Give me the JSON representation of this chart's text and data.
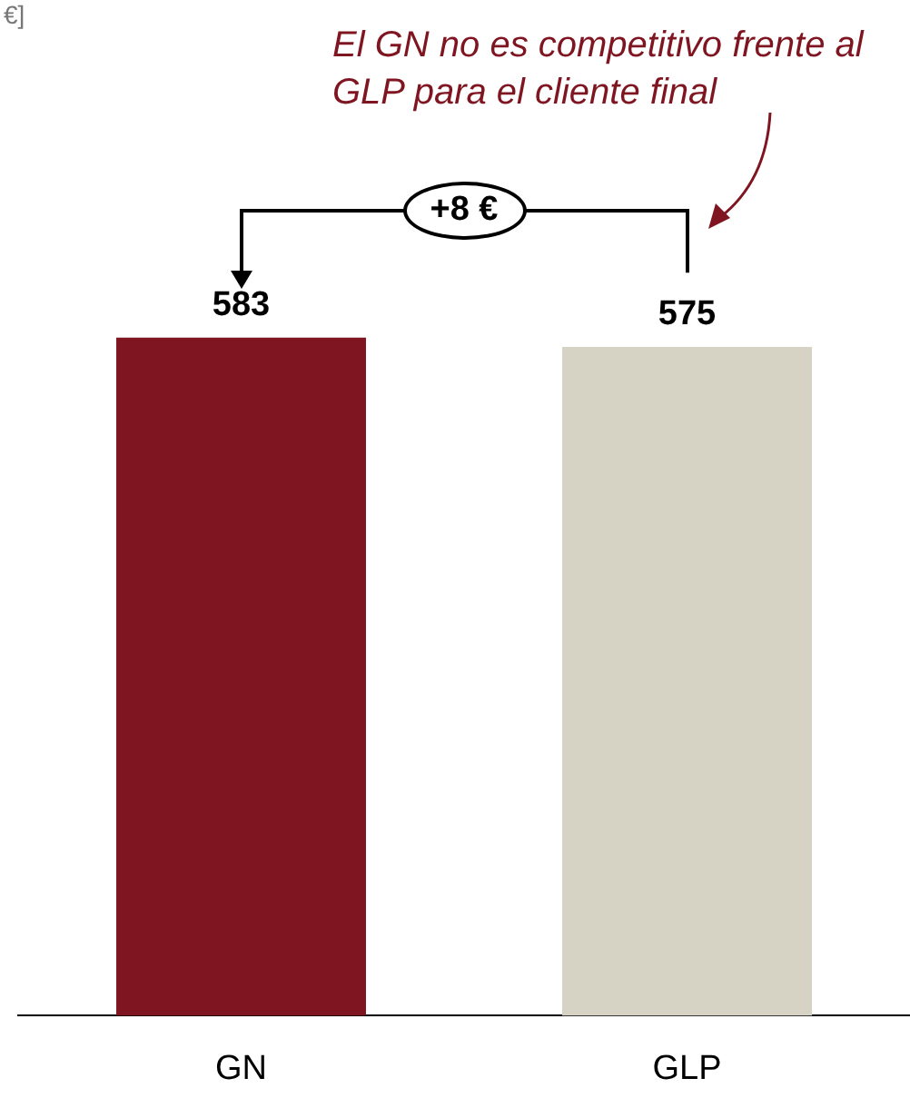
{
  "chart_data": {
    "type": "bar",
    "categories": [
      "GN",
      "GLP"
    ],
    "values": [
      583,
      575
    ],
    "colors": [
      "#7f1520",
      "#d6d2c4"
    ],
    "data_labels": true,
    "grid": false,
    "legend": false,
    "annotations": [
      "€]",
      "El GN no es competitivo frente al GLP para el cliente final",
      "+8 €"
    ]
  }
}
